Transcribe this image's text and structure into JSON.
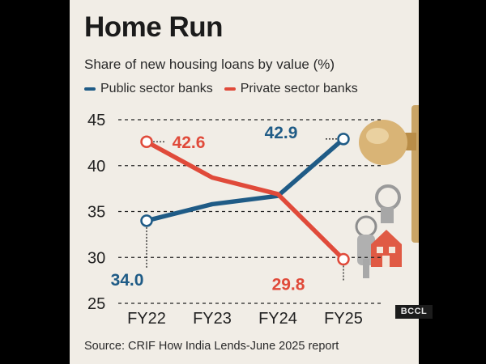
{
  "header": {
    "title": "Home Run",
    "subtitle": "Share of new housing loans by value (%)"
  },
  "legend": [
    {
      "label": "Public sector banks",
      "color": "#1f5b86"
    },
    {
      "label": "Private sector banks",
      "color": "#e04a3a"
    }
  ],
  "source": "Source: CRIF How India Lends-June 2025 report",
  "watermark": "BCCL",
  "chart_data": {
    "type": "line",
    "title": "Home Run",
    "subtitle": "Share of new housing loans by value (%)",
    "xlabel": "",
    "ylabel": "",
    "categories": [
      "FY22",
      "FY23",
      "FY24",
      "FY25"
    ],
    "ylim": [
      25,
      45
    ],
    "yticks": [
      25,
      30,
      35,
      40,
      45
    ],
    "grid": true,
    "legend_position": "top",
    "series": [
      {
        "name": "Public sector banks",
        "color": "#1f5b86",
        "values": [
          34.0,
          35.8,
          36.7,
          42.9
        ]
      },
      {
        "name": "Private sector banks",
        "color": "#e04a3a",
        "values": [
          42.6,
          38.7,
          36.9,
          29.8
        ]
      }
    ],
    "data_labels": [
      {
        "series": 0,
        "index": 0,
        "text": "34.0"
      },
      {
        "series": 0,
        "index": 3,
        "text": "42.9"
      },
      {
        "series": 1,
        "index": 0,
        "text": "42.6"
      },
      {
        "series": 1,
        "index": 3,
        "text": "29.8"
      }
    ]
  }
}
